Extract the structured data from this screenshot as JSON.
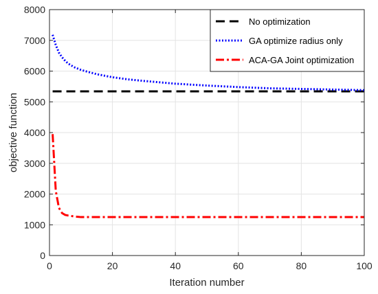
{
  "chart_data": {
    "type": "line",
    "title": "",
    "xlabel": "Iteration number",
    "ylabel": "objective function",
    "xlim": [
      0,
      100
    ],
    "ylim": [
      0,
      8000
    ],
    "xticks": [
      0,
      20,
      40,
      60,
      80,
      100
    ],
    "yticks": [
      0,
      1000,
      2000,
      3000,
      4000,
      5000,
      6000,
      7000,
      8000
    ],
    "grid": true,
    "legend_position": "top-right",
    "series": [
      {
        "name": "No optimization",
        "color": "#000000",
        "style": "dashed",
        "x": [
          1,
          100
        ],
        "y": [
          5340,
          5340
        ]
      },
      {
        "name": "GA optimize radius only",
        "color": "#0000ff",
        "style": "dotted",
        "x": [
          1,
          2,
          3,
          4,
          5,
          6,
          8,
          10,
          12,
          15,
          20,
          25,
          30,
          40,
          50,
          60,
          70,
          80,
          90,
          100
        ],
        "y": [
          7180,
          6850,
          6600,
          6450,
          6330,
          6240,
          6120,
          6040,
          5980,
          5900,
          5800,
          5730,
          5680,
          5590,
          5530,
          5480,
          5440,
          5420,
          5400,
          5380
        ]
      },
      {
        "name": "ACA-GA Joint optimization",
        "color": "#ff0000",
        "style": "dashdot",
        "x": [
          1,
          2,
          3,
          4,
          5,
          6,
          8,
          10,
          15,
          20,
          40,
          60,
          80,
          100
        ],
        "y": [
          3950,
          2100,
          1550,
          1380,
          1320,
          1300,
          1270,
          1250,
          1250,
          1250,
          1250,
          1250,
          1250,
          1250
        ]
      }
    ]
  }
}
